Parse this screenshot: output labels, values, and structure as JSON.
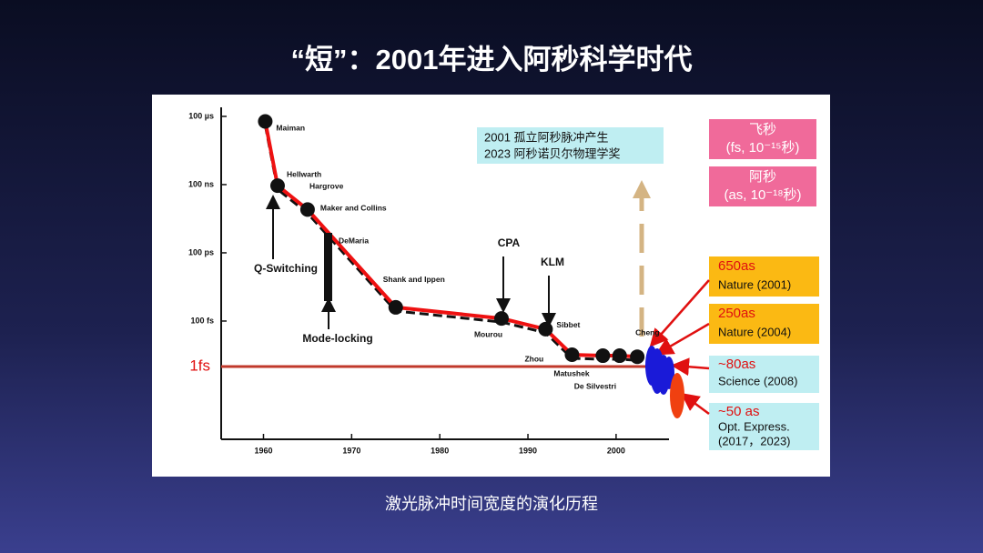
{
  "title": "“短”：2001年进入阿秒科学时代",
  "caption": "激光脉冲时间宽度的演化历程",
  "side_labels": [
    {
      "line1": "飞秒",
      "line2": "(fs, 10⁻¹⁵秒)"
    },
    {
      "line1": "阿秒",
      "line2": "(as, 10⁻¹⁸秒)"
    }
  ],
  "records": [
    {
      "value": "650as",
      "source": "Nature (2001)"
    },
    {
      "value": "250as",
      "source": "Nature (2004)"
    },
    {
      "value": "~80as",
      "source": "Science (2008)"
    },
    {
      "value": "~50 as",
      "source": "Opt. Express.",
      "years": "(2017，2023)"
    }
  ],
  "chart_data": {
    "type": "scatter",
    "x": [
      1960.2,
      1961.6,
      1965,
      1975,
      1987,
      1992,
      1995,
      1998.5,
      2000.4,
      2002.4
    ],
    "y": [
      6e-05,
      9e-08,
      8e-09,
      4e-13,
      1.3e-13,
      4.4e-14,
      3.3e-15,
      3e-15,
      3e-15,
      2.7e-15
    ],
    "point_labels": [
      "Maiman",
      "Hellwarth",
      "Maker and Collins",
      "Shank and Ippen",
      "Mourou",
      "Sibbet",
      "Zhou",
      "Matushek",
      "De Silvestri",
      "Cheng"
    ],
    "annotations": [
      "Q-Switching",
      "Mode-locking",
      "CPA",
      "KLM",
      "DeMaria",
      "Hargrove"
    ],
    "inset": [
      "2001 孤立阿秒脉冲产生",
      "2023 阿秒诺贝尔物理学奖"
    ],
    "color": "#ee1111",
    "log_y": true,
    "xlim": [
      1955.2,
      2006
    ],
    "xticks": [
      1960,
      1970,
      1980,
      1990,
      2000
    ],
    "ylim": [
      0.00025,
      6.3e-19
    ],
    "yticks": [
      {
        "value": 0.0001,
        "label": "100 µs"
      },
      {
        "value": 1e-07,
        "label": "100 ns"
      },
      {
        "value": 1e-10,
        "label": "100 ps"
      },
      {
        "value": 1e-13,
        "label": "100 fs"
      },
      {
        "value": 1e-15,
        "label": "1fs"
      }
    ]
  }
}
